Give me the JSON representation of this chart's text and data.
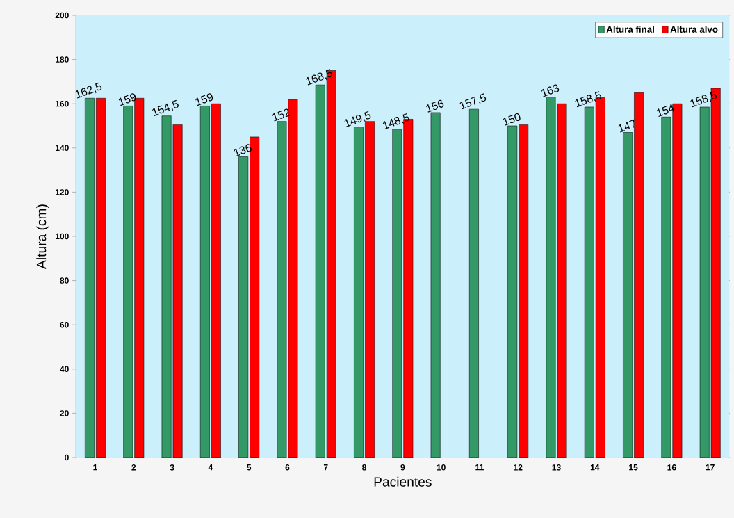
{
  "chart_data": {
    "type": "bar",
    "xlabel": "Pacientes",
    "ylabel": "Altura (cm)",
    "categories": [
      "1",
      "2",
      "3",
      "4",
      "5",
      "6",
      "7",
      "8",
      "9",
      "10",
      "11",
      "12",
      "13",
      "14",
      "15",
      "16",
      "17"
    ],
    "series": [
      {
        "name": "Altura final",
        "color": "#339966",
        "values": [
          162.5,
          159,
          154.5,
          159,
          136,
          152,
          168.5,
          149.5,
          148.5,
          156,
          157.5,
          150,
          163,
          158.5,
          147,
          154,
          158.5
        ],
        "value_labels": [
          "162,5",
          "159",
          "154,5",
          "159",
          "136",
          "152",
          "168,5",
          "149,5",
          "148,5",
          "156",
          "157,5",
          "150",
          "163",
          "158,5",
          "147",
          "154",
          "158,5"
        ]
      },
      {
        "name": "Altura alvo",
        "color": "#ff0000",
        "values": [
          162.5,
          162.5,
          150.5,
          160,
          145,
          162,
          175,
          152,
          153,
          null,
          null,
          150.5,
          160,
          163,
          165,
          160,
          167
        ]
      }
    ],
    "ylim": [
      0,
      200
    ],
    "yticks": [
      0,
      20,
      40,
      60,
      80,
      100,
      120,
      140,
      160,
      180,
      200
    ],
    "grid": "y",
    "legend": "top right"
  }
}
